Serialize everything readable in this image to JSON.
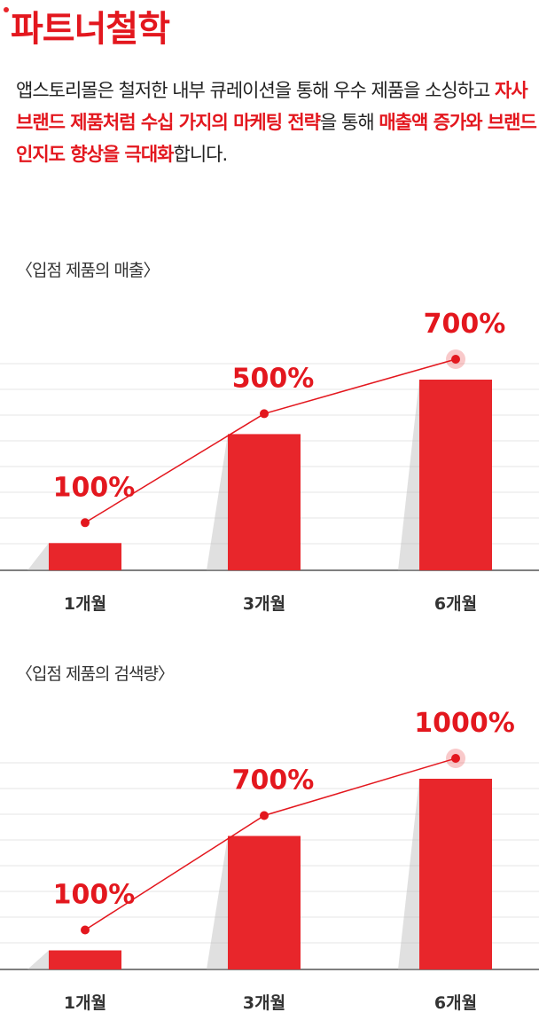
{
  "header": {
    "title": "파트너철학"
  },
  "intro": {
    "segments": [
      "앱스토리몰은 철저한 내부 큐레이션을 통해 우수 제품을 소싱하고 ",
      "자사 브랜드 제품처럼 수십 가지의 마케팅 전략",
      "을 통해 ",
      "매출액 증가와 브랜드 인지도 향상을 극대화",
      "합니다."
    ]
  },
  "chart_data": [
    {
      "type": "bar",
      "title": "〈입점 제품의 매출〉",
      "categories": [
        "1개월",
        "3개월",
        "6개월"
      ],
      "values": [
        100,
        500,
        700
      ],
      "value_labels": [
        "100%",
        "500%",
        "700%"
      ],
      "color": "#e8262b",
      "ylim": [
        0,
        700
      ]
    },
    {
      "type": "bar",
      "title": "〈입점 제품의 검색량〉",
      "categories": [
        "1개월",
        "3개월",
        "6개월"
      ],
      "values": [
        100,
        700,
        1000
      ],
      "value_labels": [
        "100%",
        "700%",
        "1000%"
      ],
      "color": "#e8262b",
      "ylim": [
        0,
        1000
      ]
    }
  ]
}
